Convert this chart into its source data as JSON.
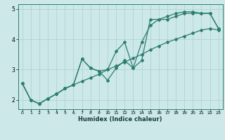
{
  "xlabel": "Humidex (Indice chaleur)",
  "bg_color": "#cce8e8",
  "grid_color": "#aacfcf",
  "line_color": "#2e7d72",
  "xlim": [
    -0.5,
    23.5
  ],
  "ylim": [
    1.7,
    5.15
  ],
  "xticks": [
    0,
    1,
    2,
    3,
    4,
    5,
    6,
    7,
    8,
    9,
    10,
    11,
    12,
    13,
    14,
    15,
    16,
    17,
    18,
    19,
    20,
    21,
    22,
    23
  ],
  "yticks": [
    2,
    3,
    4,
    5
  ],
  "line1_x": [
    0,
    1,
    2,
    3,
    4,
    5,
    6,
    7,
    8,
    9,
    10,
    11,
    12,
    13,
    14,
    15,
    16,
    17,
    18,
    19,
    20,
    21,
    22,
    23
  ],
  "line1_y": [
    2.55,
    2.0,
    1.88,
    2.05,
    2.2,
    2.38,
    2.5,
    3.35,
    3.05,
    2.95,
    3.0,
    3.6,
    3.9,
    3.05,
    3.3,
    4.65,
    4.65,
    4.75,
    4.85,
    4.9,
    4.9,
    4.85,
    4.85,
    4.35
  ],
  "line2_x": [
    0,
    1,
    2,
    3,
    4,
    5,
    6,
    7,
    8,
    9,
    10,
    11,
    12,
    13,
    14,
    15,
    16,
    17,
    18,
    19,
    20,
    21,
    22,
    23
  ],
  "line2_y": [
    2.55,
    2.0,
    1.88,
    2.05,
    2.2,
    2.38,
    2.5,
    2.62,
    2.73,
    2.85,
    3.0,
    3.12,
    3.25,
    3.38,
    3.5,
    3.65,
    3.78,
    3.9,
    4.0,
    4.1,
    4.2,
    4.3,
    4.35,
    4.3
  ],
  "line3_x": [
    0,
    1,
    2,
    3,
    4,
    5,
    6,
    7,
    8,
    9,
    10,
    11,
    12,
    13,
    14,
    15,
    16,
    17,
    18,
    19,
    20,
    21,
    22,
    23
  ],
  "line3_y": [
    2.55,
    2.0,
    1.88,
    2.05,
    2.2,
    2.38,
    2.5,
    3.35,
    3.05,
    2.95,
    2.65,
    3.05,
    3.3,
    3.05,
    3.9,
    4.45,
    4.65,
    4.65,
    4.75,
    4.85,
    4.85,
    4.85,
    4.85,
    4.35
  ]
}
